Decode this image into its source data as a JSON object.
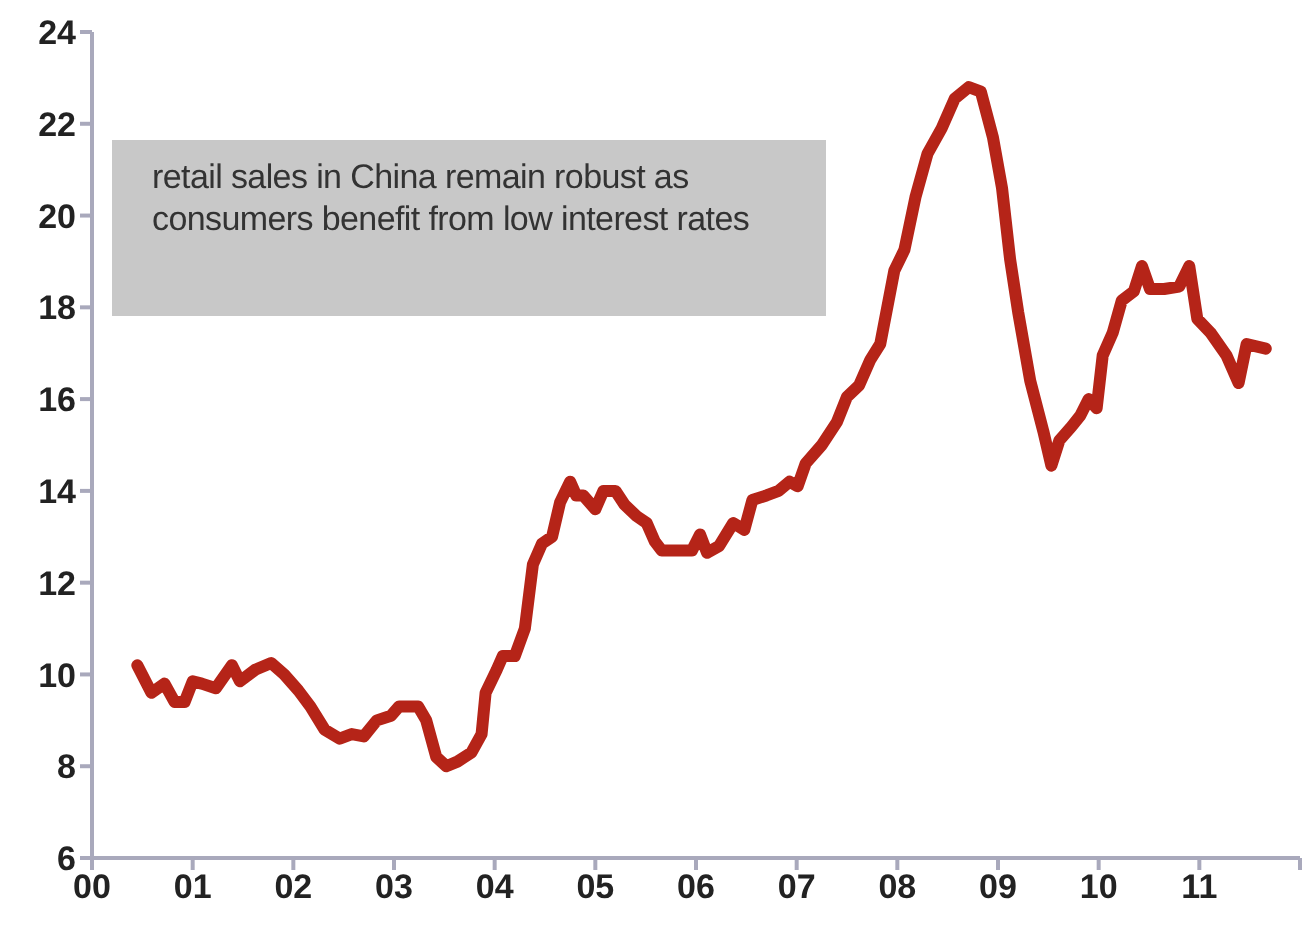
{
  "chart_data": {
    "type": "line",
    "annotations": [
      "retail sales in China remain robust as consumers benefit from low interest rates"
    ],
    "x": [
      2000.45,
      2000.59,
      2000.72,
      2000.82,
      2000.92,
      2001.0,
      2001.09,
      2001.23,
      2001.39,
      2001.47,
      2001.62,
      2001.78,
      2001.91,
      2002.05,
      2002.17,
      2002.31,
      2002.46,
      2002.58,
      2002.7,
      2002.83,
      2002.97,
      2003.05,
      2003.24,
      2003.32,
      2003.42,
      2003.52,
      2003.63,
      2003.77,
      2003.87,
      2003.91,
      2004.02,
      2004.08,
      2004.2,
      2004.3,
      2004.38,
      2004.47,
      2004.57,
      2004.65,
      2004.75,
      2004.81,
      2004.88,
      2005.0,
      2005.08,
      2005.2,
      2005.29,
      2005.41,
      2005.51,
      2005.59,
      2005.66,
      2005.76,
      2005.86,
      2005.96,
      2006.04,
      2006.11,
      2006.23,
      2006.37,
      2006.48,
      2006.56,
      2006.7,
      2006.82,
      2006.93,
      2007.01,
      2007.09,
      2007.25,
      2007.4,
      2007.5,
      2007.62,
      2007.73,
      2007.83,
      2007.97,
      2008.07,
      2008.18,
      2008.3,
      2008.44,
      2008.57,
      2008.71,
      2008.83,
      2008.95,
      2009.04,
      2009.12,
      2009.2,
      2009.32,
      2009.45,
      2009.53,
      2009.61,
      2009.73,
      2009.82,
      2009.9,
      2009.98,
      2010.04,
      2010.14,
      2010.23,
      2010.35,
      2010.43,
      2010.51,
      2010.65,
      2010.8,
      2010.9,
      2010.98,
      2011.11,
      2011.27,
      2011.39,
      2011.47,
      2011.66
    ],
    "series": [
      {
        "color": "#b52418",
        "values": [
          10.2,
          9.6,
          9.8,
          9.4,
          9.4,
          9.85,
          9.8,
          9.7,
          10.2,
          9.85,
          10.1,
          10.25,
          10.0,
          9.65,
          9.3,
          8.8,
          8.6,
          8.7,
          8.65,
          9.0,
          9.1,
          9.3,
          9.3,
          9.0,
          8.2,
          8.0,
          8.1,
          8.3,
          8.7,
          9.6,
          10.1,
          10.4,
          10.4,
          11.0,
          12.4,
          12.85,
          13.0,
          13.75,
          14.2,
          13.9,
          13.9,
          13.6,
          14.0,
          14.0,
          13.7,
          13.45,
          13.3,
          12.9,
          12.7,
          12.7,
          12.7,
          12.7,
          13.05,
          12.65,
          12.8,
          13.3,
          13.15,
          13.8,
          13.9,
          14.0,
          14.2,
          14.1,
          14.6,
          15.0,
          15.5,
          16.05,
          16.3,
          16.85,
          17.2,
          18.8,
          19.25,
          20.4,
          21.35,
          21.9,
          22.55,
          22.8,
          22.7,
          21.7,
          20.6,
          19.05,
          17.9,
          16.4,
          15.3,
          14.55,
          15.1,
          15.4,
          15.65,
          16.0,
          15.8,
          16.95,
          17.45,
          18.15,
          18.35,
          18.9,
          18.4,
          18.4,
          18.45,
          18.9,
          17.75,
          17.45,
          16.95,
          16.35,
          17.2,
          17.1
        ]
      }
    ],
    "xlim": [
      2000,
      2012
    ],
    "xticks": [
      {
        "value": 2000,
        "label": "00"
      },
      {
        "value": 2001,
        "label": "01"
      },
      {
        "value": 2002,
        "label": "02"
      },
      {
        "value": 2003,
        "label": "03"
      },
      {
        "value": 2004,
        "label": "04"
      },
      {
        "value": 2005,
        "label": "05"
      },
      {
        "value": 2006,
        "label": "06"
      },
      {
        "value": 2007,
        "label": "07"
      },
      {
        "value": 2008,
        "label": "08"
      },
      {
        "value": 2009,
        "label": "09"
      },
      {
        "value": 2010,
        "label": "10"
      },
      {
        "value": 2011,
        "label": "11"
      },
      {
        "value": 2012,
        "label": null
      }
    ],
    "ylim": [
      6,
      24
    ],
    "yticks": [
      6,
      8,
      10,
      12,
      14,
      16,
      18,
      20,
      22,
      24
    ],
    "grid": false,
    "legend": false,
    "marker": "none",
    "line_style": "solid"
  }
}
